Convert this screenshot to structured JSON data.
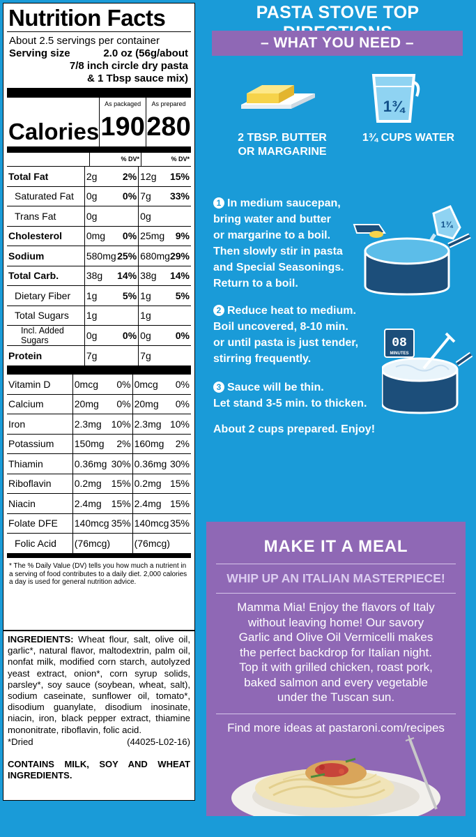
{
  "nutrition": {
    "title": "Nutrition Facts",
    "servings_per_container": "About 2.5 servings per container",
    "serving_size_label": "Serving size",
    "serving_size_value": "2.0 oz (56g/about",
    "serving_size_line2": "7/8 inch circle dry pasta",
    "serving_size_line3": "& 1 Tbsp sauce mix)",
    "col_packaged": "As packaged",
    "col_prepared": "As prepared",
    "calories_label": "Calories",
    "calories_packaged": "190",
    "calories_prepared": "280",
    "dv_label": "% DV*",
    "rows": [
      {
        "name": "Total Fat",
        "a": "2g",
        "ad": "2%",
        "p": "12g",
        "pd": "15%"
      },
      {
        "name": "Saturated Fat",
        "a": "0g",
        "ad": "0%",
        "p": "7g",
        "pd": "33%"
      },
      {
        "name": "Trans Fat",
        "a": "0g",
        "ad": "",
        "p": "0g",
        "pd": ""
      },
      {
        "name": "Cholesterol",
        "a": "0mg",
        "ad": "0%",
        "p": "25mg",
        "pd": "9%"
      },
      {
        "name": "Sodium",
        "a": "580mg",
        "ad": "25%",
        "p": "680mg",
        "pd": "29%"
      },
      {
        "name": "Total Carb.",
        "a": "38g",
        "ad": "14%",
        "p": "38g",
        "pd": "14%"
      },
      {
        "name": "Dietary Fiber",
        "a": "1g",
        "ad": "5%",
        "p": "1g",
        "pd": "5%"
      },
      {
        "name": "Total Sugars",
        "a": "1g",
        "ad": "",
        "p": "1g",
        "pd": ""
      },
      {
        "name": "Incl. Added Sugars",
        "a": "0g",
        "ad": "0%",
        "p": "0g",
        "pd": "0%"
      },
      {
        "name": "Protein",
        "a": "7g",
        "ad": "",
        "p": "7g",
        "pd": ""
      }
    ],
    "vitamins": [
      {
        "name": "Vitamin D",
        "a": "0mcg",
        "ad": "0%",
        "p": "0mcg",
        "pd": "0%"
      },
      {
        "name": "Calcium",
        "a": "20mg",
        "ad": "0%",
        "p": "20mg",
        "pd": "0%"
      },
      {
        "name": "Iron",
        "a": "2.3mg",
        "ad": "10%",
        "p": "2.3mg",
        "pd": "10%"
      },
      {
        "name": "Potassium",
        "a": "150mg",
        "ad": "2%",
        "p": "160mg",
        "pd": "2%"
      },
      {
        "name": "Thiamin",
        "a": "0.36mg",
        "ad": "30%",
        "p": "0.36mg",
        "pd": "30%"
      },
      {
        "name": "Riboflavin",
        "a": "0.2mg",
        "ad": "15%",
        "p": "0.2mg",
        "pd": "15%"
      },
      {
        "name": "Niacin",
        "a": "2.4mg",
        "ad": "15%",
        "p": "2.4mg",
        "pd": "15%"
      },
      {
        "name": "Folate DFE",
        "a": "140mcg",
        "ad": "35%",
        "p": "140mcg",
        "pd": "35%"
      },
      {
        "name": "Folic Acid",
        "a": "(76mcg)",
        "ad": "",
        "p": "(76mcg)",
        "pd": ""
      }
    ],
    "footnote": "* The % Daily Value (DV) tells you how much a nutrient in a serving of food contributes to a daily diet. 2,000 calories a day is used for general nutrition advice."
  },
  "ingredients": {
    "label": "INGREDIENTS:",
    "text": "Wheat flour, salt, olive oil, garlic*, natural flavor, maltodextrin, palm oil, nonfat milk, modified corn starch, autolyzed yeast extract, onion*, corn syrup solids, parsley*, soy sauce (soybean, wheat, salt), sodium caseinate, sunflower oil, tomato*, disodium guanylate, disodium inosinate, niacin, iron, black pepper extract, thiamine mononitrate, riboflavin, folic acid.",
    "dried": "*Dried",
    "code": "(44025-L02-16)",
    "contains": "CONTAINS MILK, SOY AND WHEAT INGREDIENTS."
  },
  "directions": {
    "title": "PASTA STOVE TOP DIRECTIONS",
    "need_heading": "– WHAT YOU NEED –",
    "butter_line1": "2 TBSP. BUTTER",
    "butter_line2": "OR MARGARINE",
    "water_label": "1¾ CUPS WATER",
    "measure_icon_text": "1¾",
    "timer_text": "08",
    "timer_sub": "MINUTES",
    "step1_num": "1",
    "step1": [
      "In medium saucepan,",
      "bring water and butter",
      "or margarine to a boil.",
      "Then slowly stir in pasta",
      "and Special Seasonings.",
      "Return to a boil."
    ],
    "step2_num": "2",
    "step2": [
      "Reduce heat to medium.",
      "Boil uncovered, 8-10 min.",
      "or until pasta is just tender,",
      "stirring frequently."
    ],
    "step3_num": "3",
    "step3": [
      "Sauce will be thin.",
      "Let stand 3-5 min. to thicken."
    ],
    "note": "About 2 cups prepared. Enjoy!"
  },
  "meal": {
    "title": "MAKE IT A MEAL",
    "subtitle": "WHIP UP AN ITALIAN MASTERPIECE!",
    "body": [
      "Mamma Mia! Enjoy the flavors of Italy",
      "without leaving home! Our savory",
      "Garlic and Olive Oil Vermicelli makes",
      "the perfect backdrop for Italian night.",
      "Top it with grilled chicken, roast pork,",
      "baked salmon and every vegetable",
      "under the Tuscan sun."
    ],
    "find": "Find more ideas at pastaroni.com/recipes"
  },
  "colors": {
    "background_blue": "#1a9bd8",
    "accent_purple": "#8f68b5",
    "pot_navy": "#1c4e7a"
  }
}
